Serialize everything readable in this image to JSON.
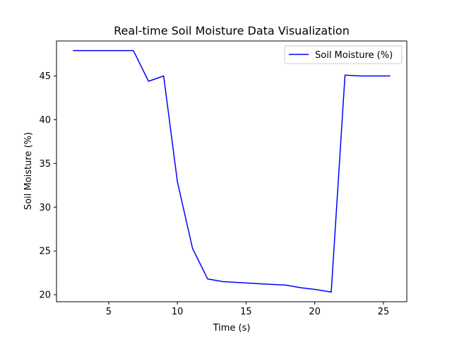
{
  "chart_data": {
    "type": "line",
    "title": "Real-time Soil Moisture Data Visualization",
    "xlabel": "Time (s)",
    "ylabel": "Soil Moisture (%)",
    "xlim": [
      1.2,
      26.7
    ],
    "ylim": [
      19.2,
      49.0
    ],
    "xticks": [
      5,
      10,
      15,
      20,
      25
    ],
    "yticks": [
      20,
      25,
      30,
      35,
      40,
      45
    ],
    "grid": false,
    "legend": {
      "position": "top-right"
    },
    "series": [
      {
        "name": "Soil Moisture (%)",
        "color": "#0000ff",
        "x": [
          2.4,
          3.5,
          4.6,
          5.7,
          6.8,
          7.9,
          9.0,
          10.0,
          11.1,
          12.2,
          13.3,
          14.4,
          15.5,
          16.6,
          17.9,
          19.0,
          20.1,
          21.2,
          22.2,
          23.3,
          24.4,
          25.5
        ],
        "y": [
          47.9,
          47.9,
          47.9,
          47.9,
          47.9,
          44.4,
          45.0,
          32.9,
          25.3,
          21.8,
          21.5,
          21.4,
          21.3,
          21.2,
          21.1,
          20.8,
          20.6,
          20.3,
          45.1,
          45.0,
          45.0,
          45.0
        ]
      }
    ]
  }
}
